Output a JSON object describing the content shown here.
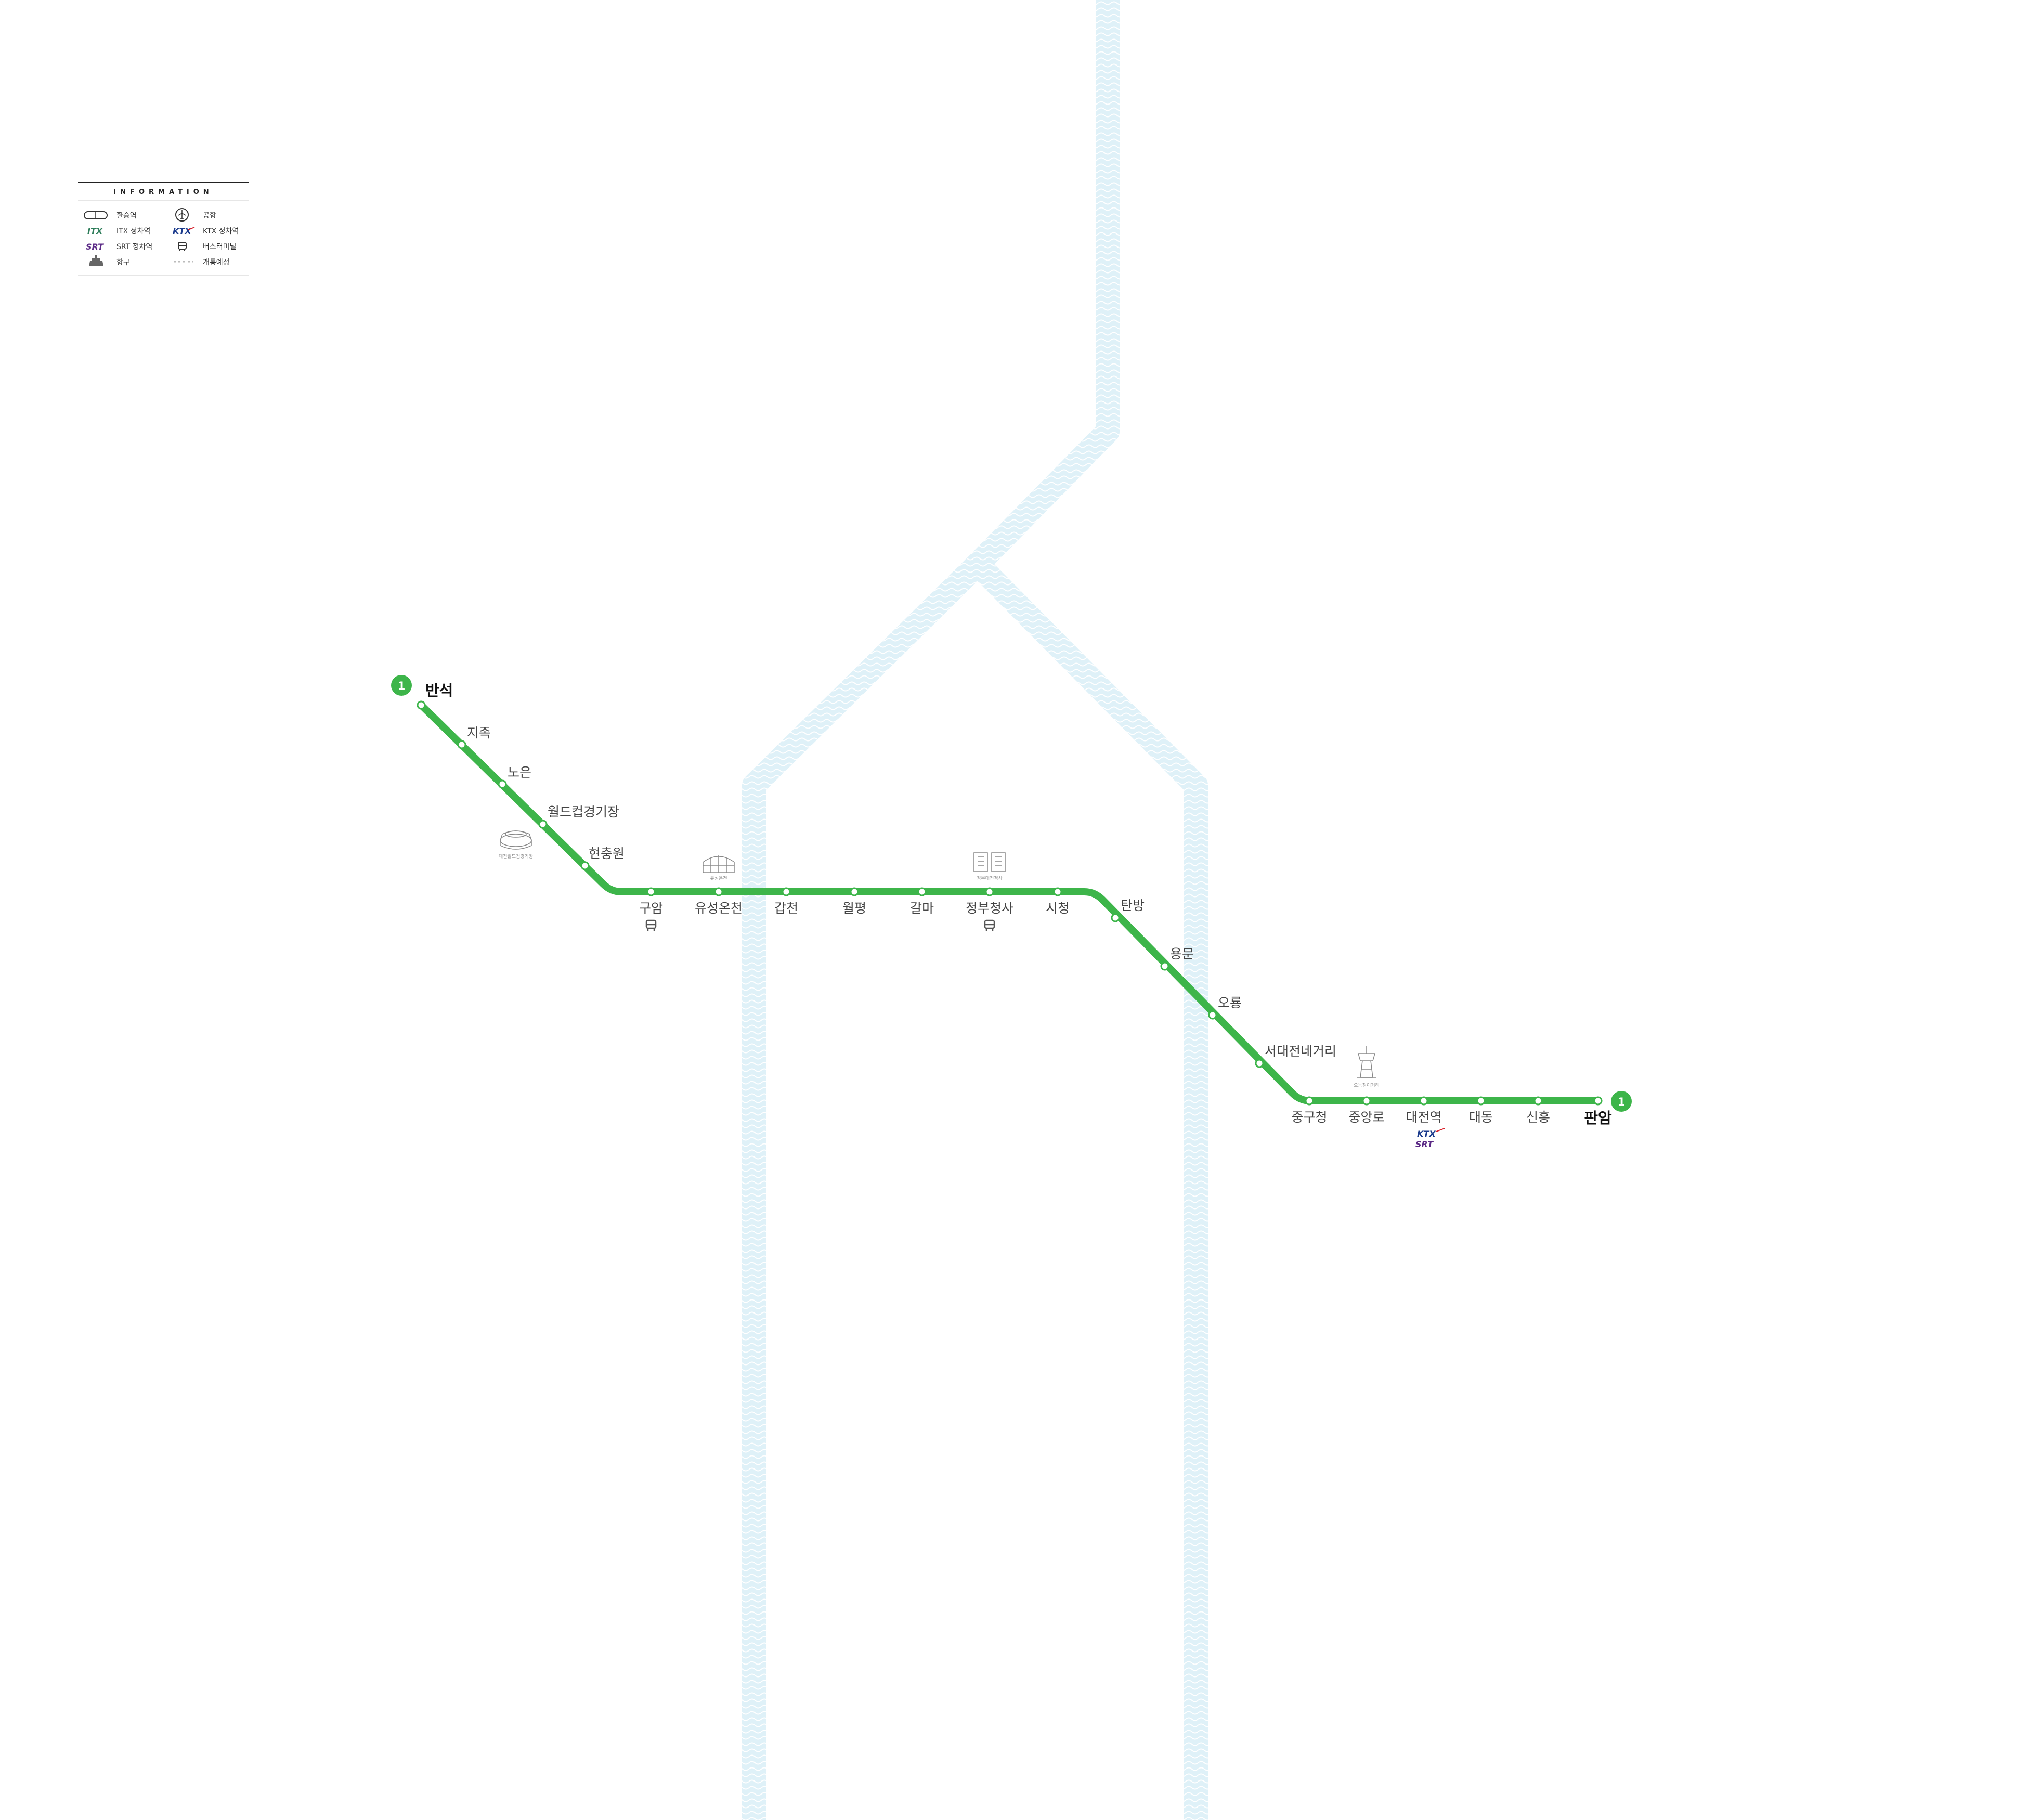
{
  "map": {
    "line_number": "1",
    "line_color": "#3db54a",
    "river_color": "#dff1f8",
    "stations": [
      "반석",
      "지족",
      "노은",
      "월드컵경기장",
      "현충원",
      "구암",
      "유성온천",
      "갑천",
      "월평",
      "갈마",
      "정부청사",
      "시청",
      "탄방",
      "용문",
      "오룡",
      "서대전네거리",
      "중구청",
      "중앙로",
      "대전역",
      "대동",
      "신흥",
      "판암"
    ],
    "terminals": [
      "반석",
      "판암"
    ],
    "bus_terminal_stations": [
      "구암",
      "정부청사"
    ],
    "rail_stations": [
      {
        "station": "대전역",
        "services": [
          "KTX",
          "SRT"
        ]
      }
    ],
    "landmarks": [
      {
        "name": "대전월드컵경기장",
        "icon": "stadium-icon"
      },
      {
        "name": "유성온천",
        "icon": "hot-spring-icon"
      },
      {
        "name": "정부대전청사",
        "icon": "government-building-icon"
      },
      {
        "name": "으능정이거리",
        "icon": "tower-icon"
      }
    ]
  },
  "legend": {
    "title": "INFORMATION",
    "items": [
      {
        "icon": "transfer-station-icon",
        "label": "환승역"
      },
      {
        "icon": "airport-icon",
        "label": "공항"
      },
      {
        "icon": "itx-icon",
        "label": "ITX 정차역",
        "logo": "ITX"
      },
      {
        "icon": "ktx-icon",
        "label": "KTX 정차역",
        "logo": "KTX"
      },
      {
        "icon": "srt-icon",
        "label": "SRT 정차역",
        "logo": "SRT"
      },
      {
        "icon": "bus-terminal-icon",
        "label": "버스터미널"
      },
      {
        "icon": "port-icon",
        "label": "항구"
      },
      {
        "icon": "planned-line-icon",
        "label": "개통예정"
      }
    ]
  }
}
